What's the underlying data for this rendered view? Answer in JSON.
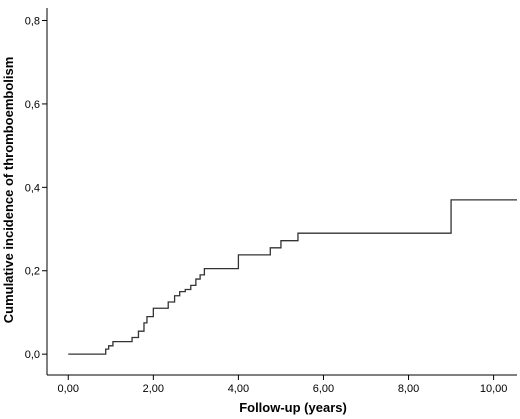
{
  "chart_data": {
    "type": "line",
    "step": true,
    "xlabel": "Follow-up (years)",
    "ylabel": "Cumulative incidence of thromboembolism",
    "xlim": [
      -0.5,
      10.55
    ],
    "ylim": [
      -0.05,
      0.83
    ],
    "x_ticks": [
      0,
      2,
      4,
      6,
      8,
      10
    ],
    "x_tick_labels": [
      "0,00",
      "2,00",
      "4,00",
      "6,00",
      "8,00",
      "10,00"
    ],
    "y_ticks": [
      0,
      0.2,
      0.4,
      0.6,
      0.8
    ],
    "y_tick_labels": [
      "0,0",
      "0,2",
      "0,4",
      "0,6",
      "0,8"
    ],
    "grid": false,
    "line_color": "#333333",
    "series": [
      {
        "x": [
          0,
          0.88,
          0.95,
          1.05,
          1.2,
          1.5,
          1.65,
          1.78,
          1.85,
          2.0,
          2.1,
          2.35,
          2.5,
          2.62,
          2.75,
          2.88,
          3.0,
          3.1,
          3.2,
          4.0,
          4.75,
          5.0,
          5.4,
          9.0,
          10.55
        ],
        "y": [
          0,
          0.012,
          0.02,
          0.03,
          0.03,
          0.04,
          0.055,
          0.075,
          0.09,
          0.11,
          0.11,
          0.125,
          0.14,
          0.15,
          0.155,
          0.165,
          0.18,
          0.19,
          0.205,
          0.238,
          0.255,
          0.272,
          0.29,
          0.37,
          0.37
        ]
      }
    ]
  }
}
